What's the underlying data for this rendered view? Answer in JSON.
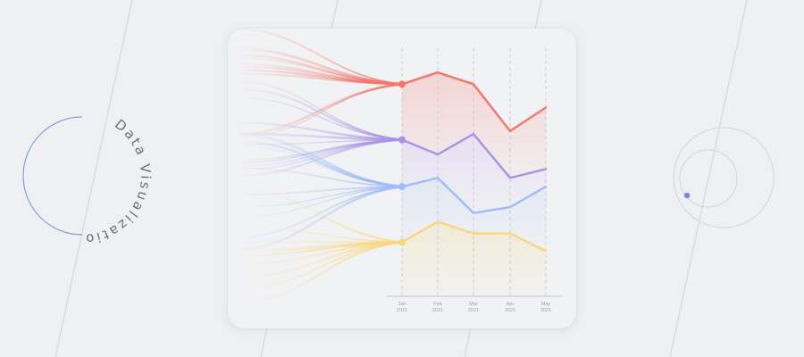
{
  "decor": {
    "title_text": "Data Visualization",
    "colors": {
      "background": "#eff0f2",
      "card": "#f1f2f4",
      "diagonal_lines": "#cfd2d8",
      "arc_blue": "#6d8fd8",
      "circle_gray": "#cdd0d6",
      "dot_blue": "#6d8fd8"
    }
  },
  "chart_data": {
    "type": "line",
    "title": "",
    "xlabel": "",
    "ylabel": "",
    "grid": "vertical dashed",
    "legend": "none",
    "categories": [
      {
        "month": "Jan",
        "year": "2021"
      },
      {
        "month": "Feb",
        "year": "2021"
      },
      {
        "month": "Mar",
        "year": "2021"
      },
      {
        "month": "Apr",
        "year": "2021"
      },
      {
        "month": "May",
        "year": "2021"
      }
    ],
    "ylim": [
      0,
      100
    ],
    "series": [
      {
        "color": "#f3756c",
        "values": [
          81,
          85,
          81,
          65,
          73
        ],
        "area": "#f4d3d2"
      },
      {
        "color": "#a893e4",
        "values": [
          62,
          57,
          64,
          49,
          52
        ],
        "area": "#e6dff2"
      },
      {
        "color": "#9fbcf6",
        "values": [
          46,
          49,
          37,
          39,
          46
        ],
        "area": "#e2e7f3"
      },
      {
        "color": "#fbd77b",
        "values": [
          27,
          34,
          30,
          30,
          24
        ],
        "area": "#f1ebd6"
      }
    ]
  }
}
